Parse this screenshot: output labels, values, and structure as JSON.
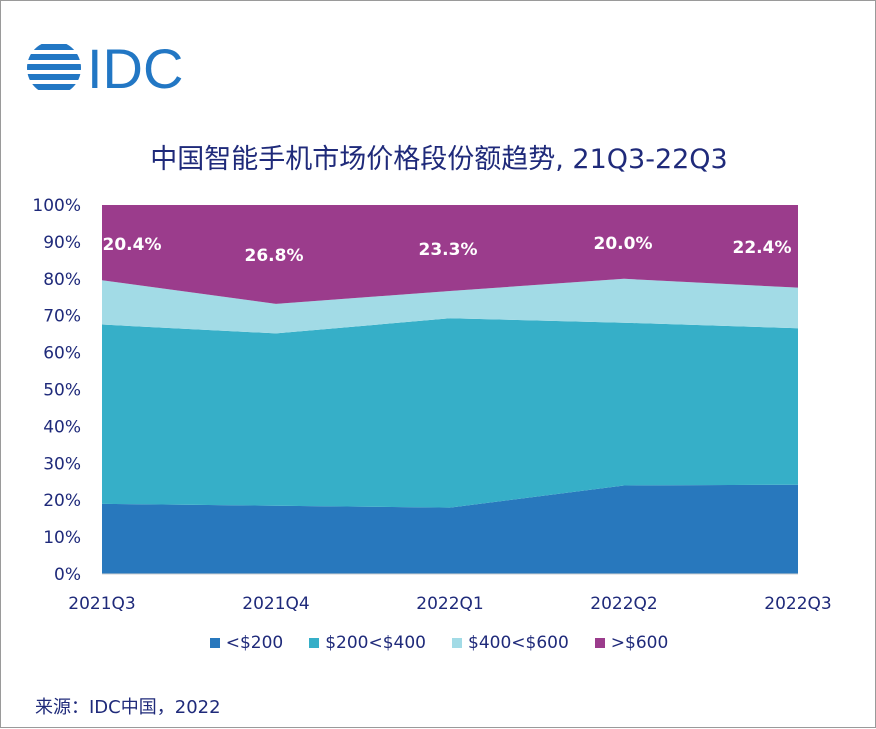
{
  "brand": {
    "logo_text": "IDC",
    "logo_color": "#2277c4"
  },
  "title": "中国智能手机市场价格段份额趋势, 21Q3-22Q3",
  "source": "来源：IDC中国，2022",
  "chart_data": {
    "type": "area",
    "stacked": true,
    "x": [
      "2021Q3",
      "2021Q4",
      "2022Q1",
      "2022Q2",
      "2022Q3"
    ],
    "y_ticks": [
      "0%",
      "10%",
      "20%",
      "30%",
      "40%",
      "50%",
      "60%",
      "70%",
      "80%",
      "90%",
      "100%"
    ],
    "ylim": [
      0,
      100
    ],
    "grid": false,
    "legend_position": "bottom",
    "series": [
      {
        "name": "<$200",
        "color": "#2878bd",
        "values": [
          19.0,
          18.5,
          18.0,
          24.0,
          24.2
        ]
      },
      {
        "name": "$200<$400",
        "color": "#36afc8",
        "values": [
          48.6,
          46.7,
          51.3,
          44.1,
          42.4
        ]
      },
      {
        "name": "$400<$600",
        "color": "#a2dbe6",
        "values": [
          12.0,
          8.0,
          7.4,
          11.9,
          11.0
        ]
      },
      {
        "name": ">$600",
        "color": "#9b3c8c",
        "values": [
          20.4,
          26.8,
          23.3,
          20.0,
          22.4
        ]
      }
    ],
    "data_labels": [
      "20.4%",
      "26.8%",
      "23.3%",
      "20.0%",
      "22.4%"
    ]
  }
}
